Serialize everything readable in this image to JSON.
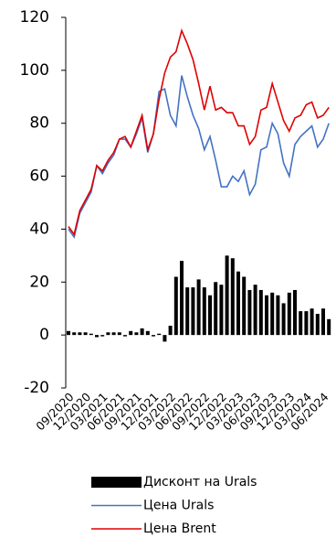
{
  "chart_data": {
    "type": "combo",
    "categories": [
      "09/2020",
      null,
      null,
      "12/2020",
      null,
      null,
      "03/2021",
      null,
      null,
      "06/2021",
      null,
      null,
      "09/2021",
      null,
      null,
      "12/2021",
      null,
      null,
      "03/2022",
      null,
      null,
      "06/2022",
      null,
      null,
      "09/2022",
      null,
      null,
      "12/2022",
      null,
      null,
      "03/2023",
      null,
      null,
      "06/2023",
      null,
      null,
      "09/2023",
      null,
      null,
      "12/2023",
      null,
      null,
      "03/2024",
      null,
      null,
      "06/2024",
      null
    ],
    "series": [
      {
        "name": "Дисконт на Urals",
        "type": "bar",
        "color": "#000000",
        "values": [
          1.5,
          1,
          1,
          1,
          0.5,
          -0.8,
          -0.5,
          1,
          1,
          1,
          -0.5,
          1.5,
          1,
          2.5,
          1.5,
          -0.5,
          0.5,
          -2.5,
          3.5,
          22,
          28,
          18,
          18,
          21,
          18,
          15,
          20,
          19,
          30,
          29,
          24,
          22,
          17,
          19,
          17,
          15,
          16,
          15,
          12,
          16,
          17,
          9,
          9,
          10,
          8,
          10,
          6
        ]
      },
      {
        "name": "Цена Urals",
        "type": "line",
        "color": "#4472c4",
        "values": [
          40,
          37,
          46,
          50,
          54,
          64,
          61,
          65,
          68,
          74,
          74,
          71,
          76,
          82,
          69,
          76,
          92,
          93,
          83,
          79,
          98,
          90,
          83,
          78,
          70,
          75,
          66,
          56,
          56,
          60,
          58,
          62,
          53,
          57,
          70,
          71,
          80,
          76,
          65,
          60,
          72,
          75,
          77,
          79,
          71,
          74,
          80
        ]
      },
      {
        "name": "Цена Brent",
        "type": "line",
        "color": "#e00000",
        "values": [
          41,
          38,
          47,
          51,
          55,
          64,
          62,
          66,
          69,
          74,
          75,
          71,
          77,
          83,
          70,
          76,
          89,
          99,
          105,
          107,
          115,
          110,
          104,
          95,
          85,
          94,
          85,
          86,
          84,
          84,
          79,
          79,
          72,
          75,
          85,
          86,
          95,
          88,
          81,
          77,
          82,
          83,
          87,
          88,
          82,
          83,
          86
        ]
      }
    ],
    "ylim": [
      -20,
      120
    ],
    "yticks": [
      -20,
      0,
      20,
      40,
      60,
      80,
      100,
      120
    ]
  }
}
